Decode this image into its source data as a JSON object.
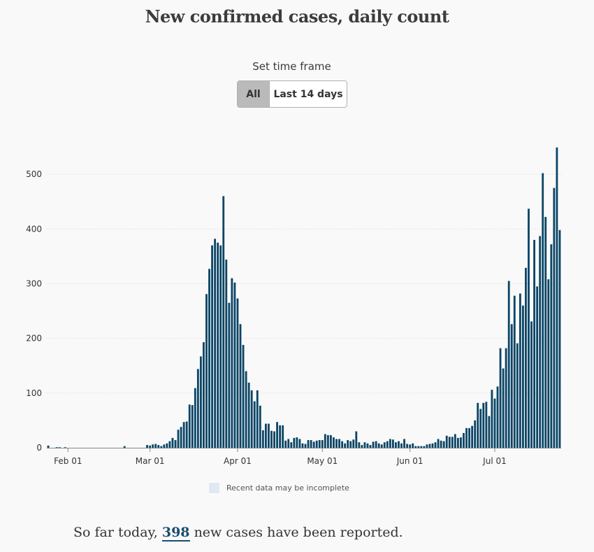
{
  "title": "New confirmed cases, daily count",
  "timeframe": {
    "label": "Set time frame",
    "options": [
      "All",
      "Last 14 days"
    ],
    "selected": "All"
  },
  "legend": {
    "incomplete_label": "Recent data may be incomplete"
  },
  "summary": {
    "prefix": "So far today,",
    "count": "398",
    "suffix": "new cases have been reported."
  },
  "colors": {
    "bar": "#0b4566",
    "incomplete": "#e2e8f3",
    "grid": "#d9d9d9"
  },
  "chart_data": {
    "type": "bar",
    "x_start": "2020-01-25",
    "xtick_labels": [
      "Feb 01",
      "Mar 01",
      "Apr 01",
      "May 01",
      "Jun 01",
      "Jul 01"
    ],
    "xtick_dates": [
      "2020-02-01",
      "2020-03-01",
      "2020-04-01",
      "2020-05-01",
      "2020-06-01",
      "2020-07-01"
    ],
    "yticks": [
      0,
      100,
      200,
      300,
      400,
      500
    ],
    "ylim": [
      0,
      550
    ],
    "incomplete_from": "2020-07-29",
    "values": [
      4,
      0,
      0,
      1,
      1,
      0,
      1,
      0,
      0,
      0,
      0,
      0,
      0,
      0,
      0,
      0,
      0,
      0,
      0,
      0,
      0,
      0,
      0,
      0,
      0,
      0,
      0,
      3,
      0,
      0,
      0,
      0,
      0,
      0,
      0,
      5,
      4,
      6,
      7,
      5,
      3,
      6,
      8,
      12,
      18,
      14,
      33,
      38,
      47,
      48,
      79,
      78,
      109,
      144,
      167,
      193,
      281,
      327,
      370,
      382,
      375,
      370,
      460,
      344,
      265,
      310,
      302,
      273,
      226,
      188,
      140,
      119,
      105,
      85,
      105,
      77,
      32,
      44,
      44,
      31,
      30,
      47,
      41,
      41,
      13,
      16,
      10,
      18,
      19,
      16,
      8,
      7,
      14,
      14,
      11,
      13,
      14,
      14,
      25,
      23,
      23,
      19,
      16,
      16,
      12,
      8,
      14,
      12,
      15,
      30,
      10,
      5,
      10,
      8,
      5,
      11,
      12,
      8,
      6,
      10,
      12,
      16,
      15,
      10,
      12,
      8,
      16,
      7,
      6,
      8,
      3,
      3,
      3,
      3,
      6,
      7,
      8,
      10,
      16,
      13,
      12,
      22,
      20,
      20,
      25,
      18,
      19,
      27,
      36,
      36,
      40,
      50,
      82,
      71,
      82,
      84,
      58,
      106,
      90,
      112,
      182,
      145,
      182,
      305,
      226,
      278,
      191,
      282,
      260,
      329,
      437,
      231,
      380,
      295,
      387,
      502,
      422,
      308,
      372,
      475,
      549,
      398
    ]
  }
}
